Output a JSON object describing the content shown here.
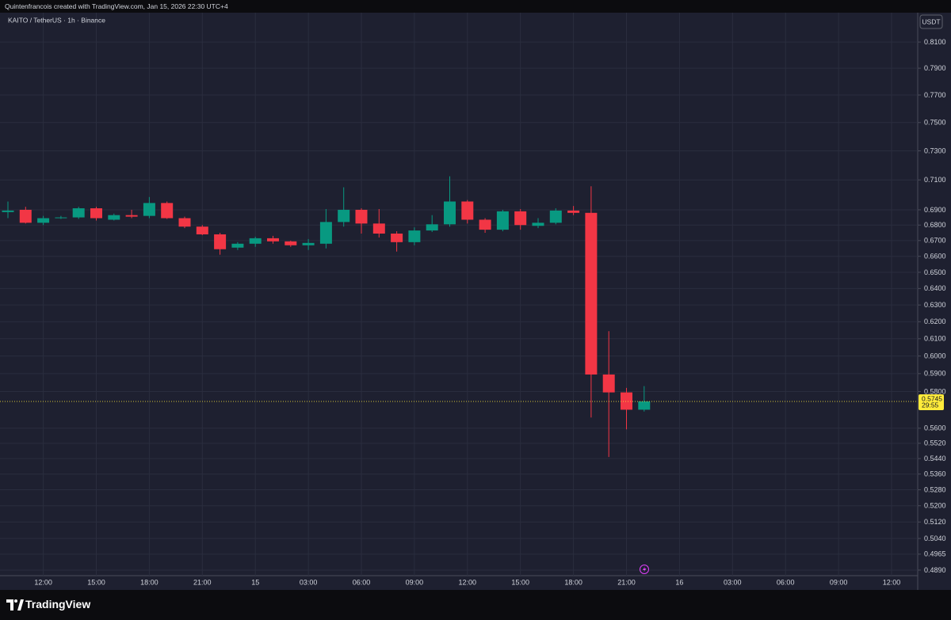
{
  "header": {
    "caption": "Quintenfrancois created with TradingView.com, Jan 15, 2026 22:30 UTC+4"
  },
  "footer": {
    "brand": "TradingView"
  },
  "chart_data": {
    "type": "candlestick",
    "title": "KAITO / TetherUS · 1h · Binance",
    "currency": "USDT",
    "categories": [
      null,
      null,
      "12:00",
      null,
      null,
      "15:00",
      null,
      null,
      "18:00",
      null,
      null,
      "21:00",
      null,
      null,
      "15",
      null,
      null,
      "03:00",
      null,
      null,
      "06:00",
      null,
      null,
      "09:00",
      null,
      null,
      "12:00",
      null,
      null,
      "15:00",
      null,
      null,
      "18:00",
      null,
      null,
      "21:00",
      null,
      null,
      "16",
      null,
      null,
      "03:00",
      null,
      null,
      "06:00",
      null,
      null,
      "09:00",
      null,
      null,
      "12:00",
      null
    ],
    "open": [
      0.6885,
      0.69,
      0.6815,
      0.6845,
      0.685,
      0.691,
      0.6835,
      0.6865,
      0.686,
      0.6945,
      0.6845,
      0.679,
      0.674,
      0.6655,
      0.668,
      0.6715,
      0.6695,
      0.667,
      0.668,
      0.682,
      0.69,
      0.681,
      0.6745,
      0.669,
      0.6765,
      0.6805,
      0.6955,
      0.6835,
      0.677,
      0.689,
      0.6795,
      0.6815,
      0.6895,
      0.688,
      0.5895,
      0.5795,
      0.57,
      null,
      null,
      null,
      null,
      null,
      null,
      null,
      null,
      null,
      null,
      null,
      null,
      null,
      null,
      null
    ],
    "high": [
      0.6955,
      0.692,
      0.686,
      0.686,
      0.692,
      0.692,
      0.6875,
      0.69,
      0.6985,
      0.6955,
      0.6855,
      0.68,
      0.675,
      0.669,
      0.6725,
      0.673,
      0.67,
      0.671,
      0.6905,
      0.705,
      0.691,
      0.6905,
      0.676,
      0.6785,
      0.6865,
      0.7125,
      0.6965,
      0.6845,
      0.69,
      0.6905,
      0.6845,
      0.691,
      0.6925,
      0.7057,
      0.6144,
      0.582,
      0.583,
      null,
      null,
      null,
      null,
      null,
      null,
      null,
      null,
      null,
      null,
      null,
      null,
      null,
      null,
      null
    ],
    "low": [
      0.6845,
      0.681,
      0.68,
      0.684,
      0.684,
      0.683,
      0.683,
      0.6845,
      0.6845,
      0.684,
      0.678,
      0.6735,
      0.661,
      0.664,
      0.666,
      0.668,
      0.666,
      0.664,
      0.665,
      0.679,
      0.6745,
      0.672,
      0.663,
      0.667,
      0.6755,
      0.679,
      0.681,
      0.675,
      0.676,
      0.677,
      0.678,
      0.6805,
      0.6865,
      0.5658,
      0.5448,
      0.5594,
      0.569,
      null,
      null,
      null,
      null,
      null,
      null,
      null,
      null,
      null,
      null,
      null,
      null,
      null,
      null,
      null
    ],
    "close": [
      0.6895,
      0.6815,
      0.6845,
      0.685,
      0.691,
      0.6845,
      0.6865,
      0.6855,
      0.6945,
      0.6845,
      0.679,
      0.674,
      0.6645,
      0.668,
      0.6715,
      0.6695,
      0.667,
      0.6685,
      0.682,
      0.69,
      0.681,
      0.6745,
      0.669,
      0.6765,
      0.6805,
      0.6955,
      0.6835,
      0.677,
      0.689,
      0.68,
      0.6815,
      0.6895,
      0.688,
      0.5895,
      0.5795,
      0.57,
      0.5745,
      null,
      null,
      null,
      null,
      null,
      null,
      null,
      null,
      null,
      null,
      null,
      null,
      null,
      null,
      null
    ],
    "up_color": "#089981",
    "down_color": "#f23645",
    "log_scale": true,
    "grid": true,
    "ylim": [
      0.4864,
      0.8318
    ],
    "yticks": [
      {
        "value": 0.81,
        "label": "0.8100"
      },
      {
        "value": 0.79,
        "label": "0.7900"
      },
      {
        "value": 0.77,
        "label": "0.7700"
      },
      {
        "value": 0.75,
        "label": "0.7500"
      },
      {
        "value": 0.73,
        "label": "0.7300"
      },
      {
        "value": 0.71,
        "label": "0.7100"
      },
      {
        "value": 0.69,
        "label": "0.6900"
      },
      {
        "value": 0.68,
        "label": "0.6800"
      },
      {
        "value": 0.67,
        "label": "0.6700"
      },
      {
        "value": 0.66,
        "label": "0.6600"
      },
      {
        "value": 0.65,
        "label": "0.6500"
      },
      {
        "value": 0.64,
        "label": "0.6400"
      },
      {
        "value": 0.63,
        "label": "0.6300"
      },
      {
        "value": 0.62,
        "label": "0.6200"
      },
      {
        "value": 0.61,
        "label": "0.6100"
      },
      {
        "value": 0.6,
        "label": "0.6000"
      },
      {
        "value": 0.59,
        "label": "0.5900"
      },
      {
        "value": 0.58,
        "label": "0.5800"
      },
      {
        "value": 0.56,
        "label": "0.5600"
      },
      {
        "value": 0.552,
        "label": "0.5520"
      },
      {
        "value": 0.544,
        "label": "0.5440"
      },
      {
        "value": 0.536,
        "label": "0.5360"
      },
      {
        "value": 0.528,
        "label": "0.5280"
      },
      {
        "value": 0.52,
        "label": "0.5200"
      },
      {
        "value": 0.512,
        "label": "0.5120"
      },
      {
        "value": 0.504,
        "label": "0.5040"
      },
      0.4965,
      {
        "value": 0.489,
        "label": "0.4890"
      }
    ],
    "last_price": 0.5745,
    "last_price_color": "#ffeb3b",
    "countdown": "29:55"
  }
}
